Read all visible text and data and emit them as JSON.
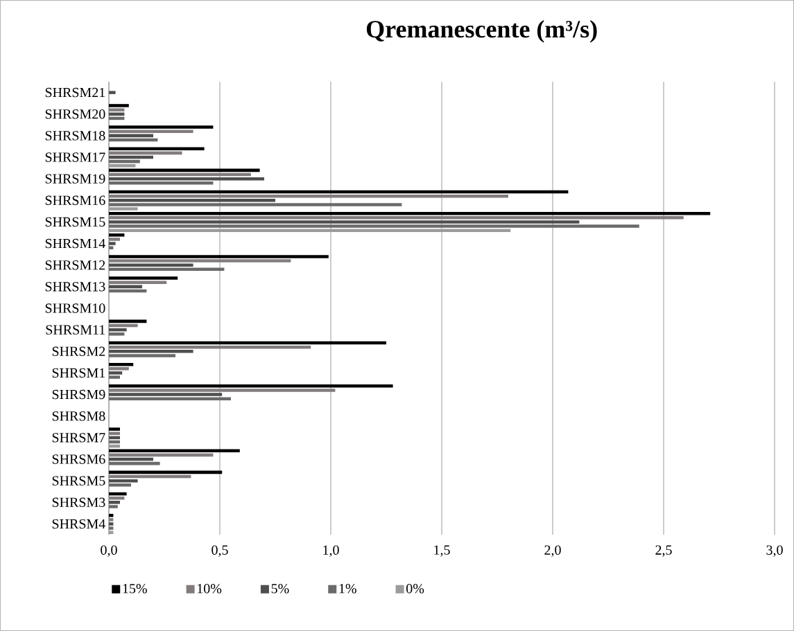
{
  "chart_data": {
    "type": "bar",
    "orientation": "horizontal",
    "title": "Qremanescente (m³/s)",
    "categories": [
      "SHRSM21",
      "SHRSM20",
      "SHRSM18",
      "SHRSM17",
      "SHRSM19",
      "SHRSM16",
      "SHRSM15",
      "SHRSM14",
      "SHRSM12",
      "SHRSM13",
      "SHRSM10",
      "SHRSM11",
      "SHRSM2",
      "SHRSM1",
      "SHRSM9",
      "SHRSM8",
      "SHRSM7",
      "SHRSM6",
      "SHRSM5",
      "SHRSM3",
      "SHRSM4"
    ],
    "series": [
      {
        "name": "15%",
        "color": "#000000",
        "values": [
          null,
          0.09,
          0.47,
          0.43,
          0.68,
          2.07,
          2.71,
          0.07,
          0.99,
          0.31,
          null,
          0.17,
          1.25,
          0.11,
          1.28,
          null,
          0.05,
          0.59,
          0.51,
          0.08,
          0.02
        ]
      },
      {
        "name": "10%",
        "color": "#827c7c",
        "values": [
          null,
          0.07,
          0.38,
          0.33,
          0.64,
          1.8,
          2.59,
          0.05,
          0.82,
          0.26,
          null,
          0.13,
          0.91,
          0.09,
          1.02,
          null,
          0.05,
          0.47,
          0.37,
          0.07,
          0.02
        ]
      },
      {
        "name": "5%",
        "color": "#4e4e4e",
        "values": [
          0.03,
          0.07,
          0.2,
          0.2,
          0.7,
          0.75,
          2.12,
          0.03,
          0.38,
          0.15,
          null,
          0.08,
          0.38,
          0.06,
          0.51,
          null,
          0.05,
          0.2,
          0.13,
          0.05,
          0.02
        ]
      },
      {
        "name": "1%",
        "color": "#6a6a6a",
        "values": [
          null,
          0.07,
          0.22,
          0.14,
          0.47,
          1.32,
          2.39,
          0.02,
          0.52,
          0.17,
          null,
          0.07,
          0.3,
          0.05,
          0.55,
          null,
          0.05,
          0.23,
          0.1,
          0.04,
          0.02
        ]
      },
      {
        "name": "0%",
        "color": "#9b9b9b",
        "values": [
          null,
          null,
          null,
          0.12,
          null,
          0.13,
          1.81,
          null,
          null,
          null,
          null,
          null,
          null,
          null,
          null,
          null,
          0.05,
          null,
          null,
          null,
          0.02
        ]
      }
    ],
    "xlim": [
      0,
      3
    ],
    "xticks": [
      {
        "value": 0,
        "label": "0,0"
      },
      {
        "value": 0.5,
        "label": "0,5"
      },
      {
        "value": 1,
        "label": "1,0"
      },
      {
        "value": 1.5,
        "label": "1,5"
      },
      {
        "value": 2,
        "label": "2,0"
      },
      {
        "value": 2.5,
        "label": "2,5"
      },
      {
        "value": 3,
        "label": "3,0"
      }
    ],
    "grid": "x",
    "legend": "bottom left"
  }
}
